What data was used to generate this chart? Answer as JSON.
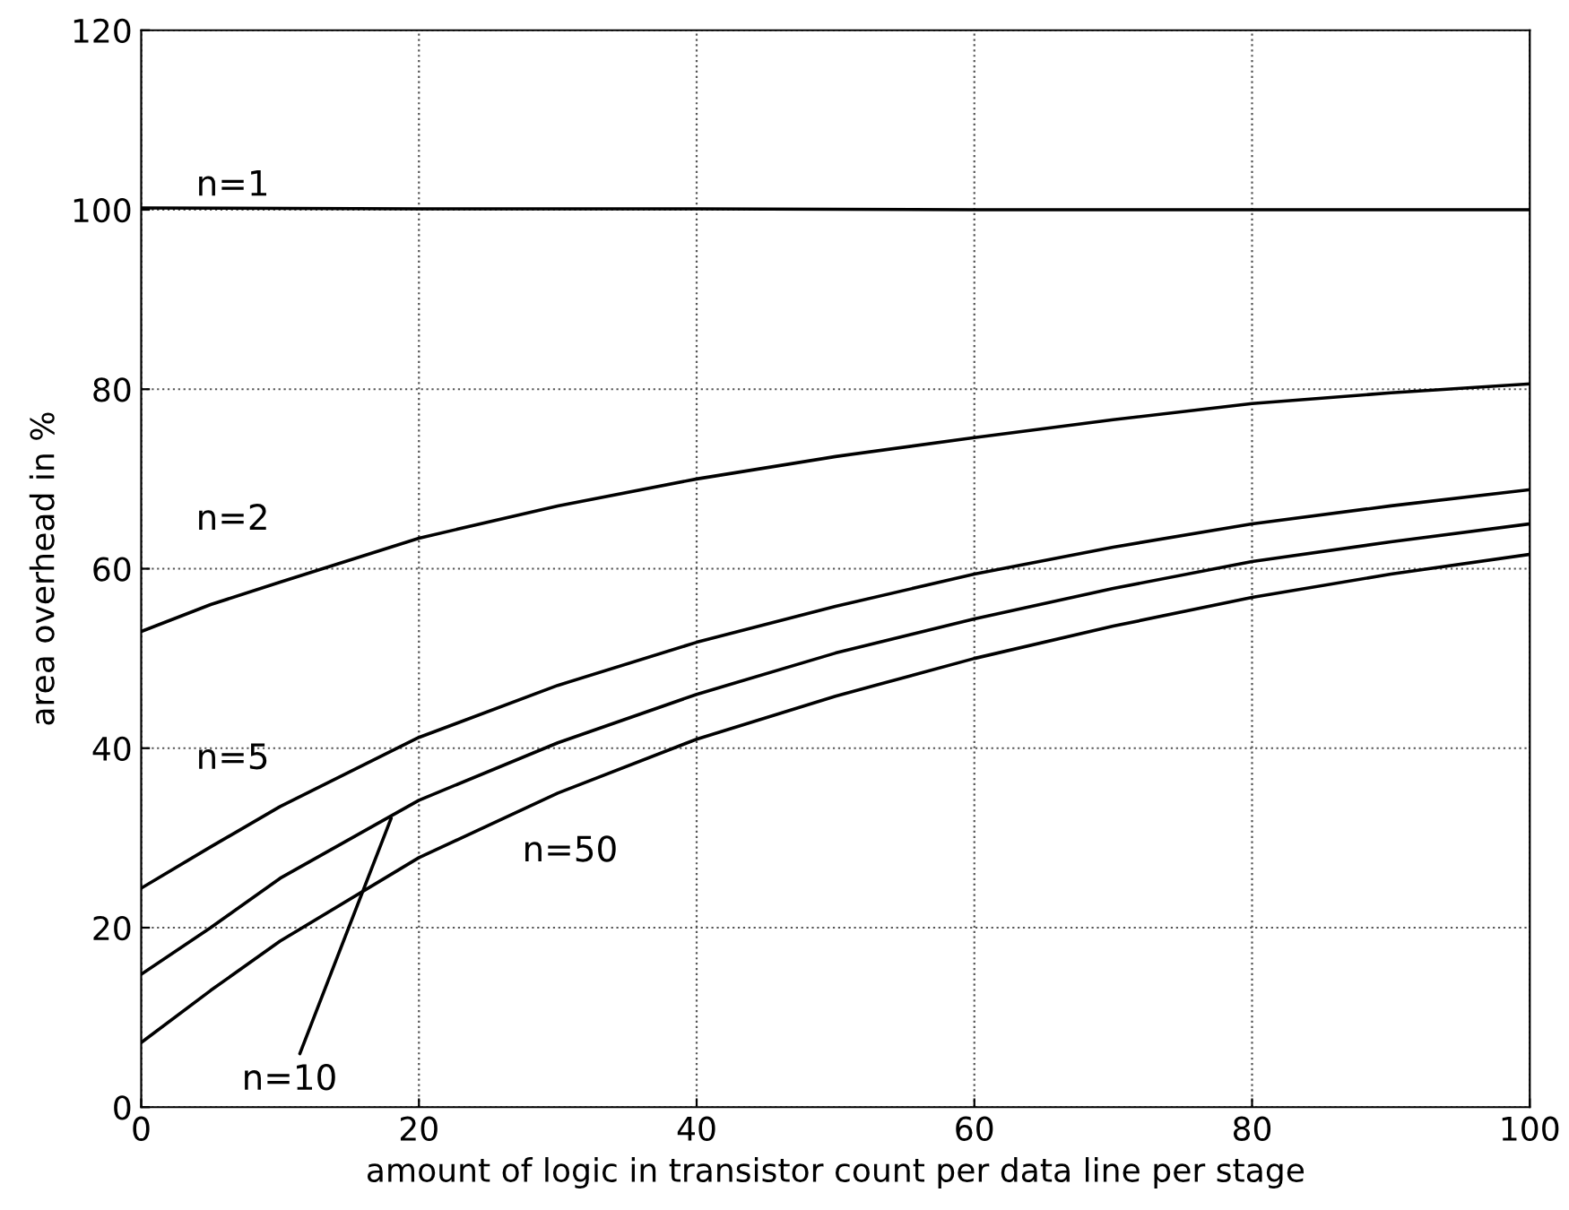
{
  "chart_data": {
    "type": "line",
    "xlabel": "amount of logic in transistor count per data line per stage",
    "ylabel": "area overhead in %",
    "xlim": [
      0,
      100
    ],
    "ylim": [
      0,
      120
    ],
    "xticks": [
      0,
      20,
      40,
      60,
      80,
      100
    ],
    "yticks": [
      0,
      20,
      40,
      60,
      80,
      100,
      120
    ],
    "grid": true,
    "line_style": "solid",
    "marker": "none",
    "series": [
      {
        "name": "n=1",
        "color": "#000000",
        "x": [
          0,
          20,
          40,
          60,
          80,
          100
        ],
        "values": [
          100.2,
          100.1,
          100.1,
          100,
          100,
          100
        ]
      },
      {
        "name": "n=2",
        "color": "#000000",
        "x": [
          0,
          5,
          10,
          20,
          30,
          40,
          50,
          60,
          70,
          80,
          90,
          100
        ],
        "values": [
          53,
          56,
          58.5,
          63.4,
          67,
          70,
          72.5,
          74.6,
          76.6,
          78.4,
          79.6,
          80.6
        ]
      },
      {
        "name": "n=5",
        "color": "#000000",
        "x": [
          0,
          5,
          10,
          20,
          30,
          40,
          50,
          60,
          70,
          80,
          90,
          100
        ],
        "values": [
          24.4,
          29,
          33.5,
          41.2,
          47,
          51.8,
          55.8,
          59.4,
          62.4,
          65,
          67,
          68.8
        ]
      },
      {
        "name": "n=10",
        "color": "#000000",
        "x": [
          0,
          5,
          10,
          20,
          30,
          40,
          50,
          60,
          70,
          80,
          90,
          100
        ],
        "values": [
          14.8,
          20,
          25.5,
          34.2,
          40.6,
          46,
          50.6,
          54.4,
          57.8,
          60.8,
          63,
          65
        ]
      },
      {
        "name": "n=50",
        "color": "#000000",
        "x": [
          0,
          5,
          10,
          20,
          30,
          40,
          50,
          60,
          70,
          80,
          90,
          100
        ],
        "values": [
          7.2,
          13,
          18.5,
          27.8,
          35,
          41,
          45.8,
          50,
          53.6,
          56.8,
          59.4,
          61.6
        ]
      }
    ]
  }
}
